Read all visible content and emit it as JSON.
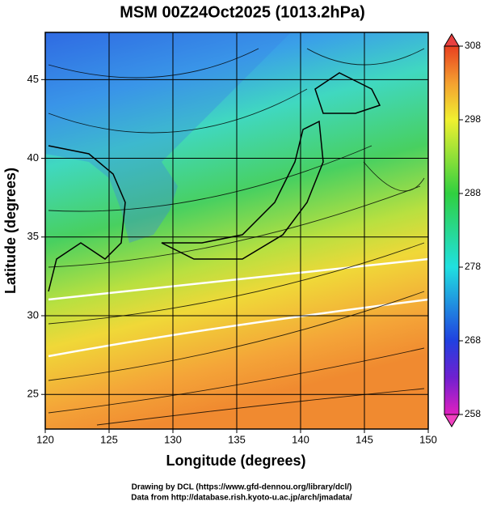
{
  "chart_data": {
    "type": "map",
    "title": "MSM 00Z24Oct2025 (1013.2hPa)",
    "xlabel": "Longitude (degrees)",
    "ylabel": "Latitude  (degrees)",
    "xlim": [
      120,
      150
    ],
    "xticks": [
      120,
      125,
      130,
      135,
      140,
      145,
      150
    ],
    "ylim": [
      22.8,
      48
    ],
    "yticks": [
      25,
      30,
      35,
      40,
      45
    ],
    "grid": true,
    "colorbar": {
      "lim": [
        258,
        308
      ],
      "ticks": [
        258,
        268,
        278,
        288,
        298,
        308
      ]
    },
    "footer": [
      "Drawing by DCL (https://www.gfd-dennou.org/library/dcl/)",
      "Data from http://database.rish.kyoto-u.ac.jp/arch/jmadata/"
    ]
  }
}
